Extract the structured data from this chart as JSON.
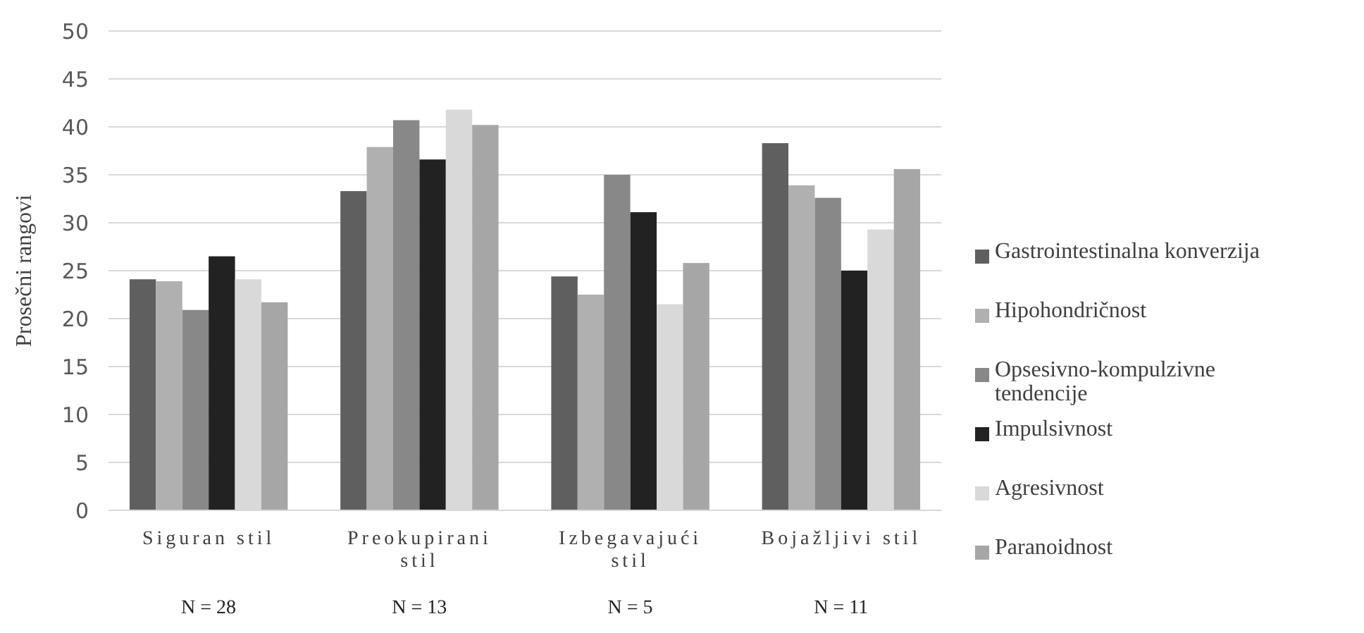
{
  "chart_data": {
    "type": "bar",
    "ylabel": "Prosečni rangovi",
    "categories": [
      "Siguran stil",
      "Preokupirani stil",
      "Izbegavajući stil",
      "Bojažljivi stil"
    ],
    "series": [
      {
        "name": "Gastrointestinalna konverzija",
        "color": "#5f5f5f",
        "values": [
          24.1,
          33.3,
          24.4,
          38.3
        ]
      },
      {
        "name": "Hipohondričnost",
        "color": "#b0b0b0",
        "values": [
          23.9,
          37.9,
          22.5,
          33.9
        ]
      },
      {
        "name": "Opsesivno-kompulzivne tendencije",
        "color": "#888888",
        "values": [
          20.9,
          40.7,
          35.0,
          32.6
        ]
      },
      {
        "name": "Impulsivnost",
        "color": "#222222",
        "values": [
          26.5,
          36.6,
          31.1,
          25.0
        ]
      },
      {
        "name": "Agresivnost",
        "color": "#d9d9d9",
        "values": [
          24.1,
          41.8,
          21.5,
          29.3
        ]
      },
      {
        "name": "Paranoidnost",
        "color": "#a6a6a6",
        "values": [
          21.7,
          40.2,
          25.8,
          35.6
        ]
      }
    ],
    "ylim": [
      0,
      50
    ],
    "yticks": [
      0,
      5,
      10,
      15,
      20,
      25,
      30,
      35,
      40,
      45,
      50
    ],
    "grid": "y",
    "legend": "right",
    "annotations": [
      "N = 28",
      "N = 13",
      "N = 5",
      "N = 11"
    ]
  }
}
